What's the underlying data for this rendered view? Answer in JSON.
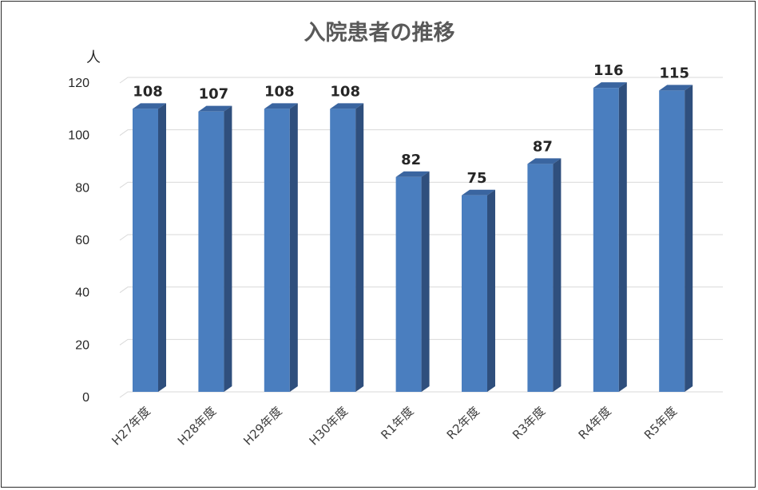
{
  "chart_data": {
    "type": "bar",
    "title": "入院患者の推移",
    "ylabel": "人",
    "xlabel": "",
    "categories": [
      "H27年度",
      "H28年度",
      "H29年度",
      "H30年度",
      "R1年度",
      "R2年度",
      "R3年度",
      "R4年度",
      "R5年度"
    ],
    "values": [
      108,
      107,
      108,
      108,
      82,
      75,
      87,
      116,
      115
    ],
    "ylim": [
      0,
      120
    ],
    "yticks": [
      0,
      20,
      40,
      60,
      80,
      100,
      120
    ],
    "grid": true,
    "legend": "none",
    "data_labels": true,
    "colors": {
      "bar_front": "#4a7ebf",
      "bar_top": "#3a65a0",
      "bar_side": "#2f4f7d"
    }
  }
}
